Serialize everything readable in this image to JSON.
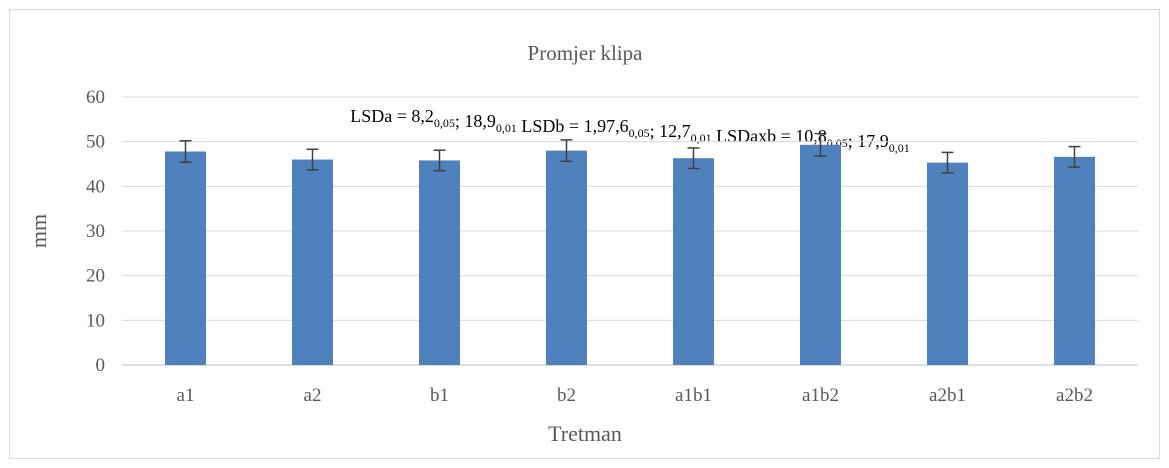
{
  "chart_data": {
    "type": "bar",
    "title": "Promjer klipa",
    "xlabel": "Tretman",
    "ylabel": "mm",
    "categories": [
      "a1",
      "a2",
      "b1",
      "b2",
      "a1b1",
      "a1b2",
      "a2b1",
      "a2b2"
    ],
    "values": [
      47.8,
      46.0,
      45.8,
      48.0,
      46.3,
      49.3,
      45.3,
      46.6
    ],
    "error": [
      2.4,
      2.3,
      2.3,
      2.4,
      2.3,
      2.5,
      2.3,
      2.3
    ],
    "ylim": [
      0,
      60
    ],
    "yticks": [
      0,
      10,
      20,
      30,
      40,
      50,
      60
    ],
    "grid": true,
    "bar_color": "#4f81bd",
    "error_bar_color": "#404040",
    "annotation": {
      "parts": [
        {
          "text": "LSDa = 8,2",
          "sub": "0,05"
        },
        {
          "text": "; 18,9",
          "sub": "0,01"
        },
        {
          "text": " LSDb = 1,97,6",
          "sub": "0,05"
        },
        {
          "text": "; 12,7",
          "sub": "0,01"
        },
        {
          "text": " LSDaxb = 10,8",
          "sub": "0,05"
        },
        {
          "text": "; 17,9",
          "sub": "0,01"
        }
      ]
    }
  }
}
